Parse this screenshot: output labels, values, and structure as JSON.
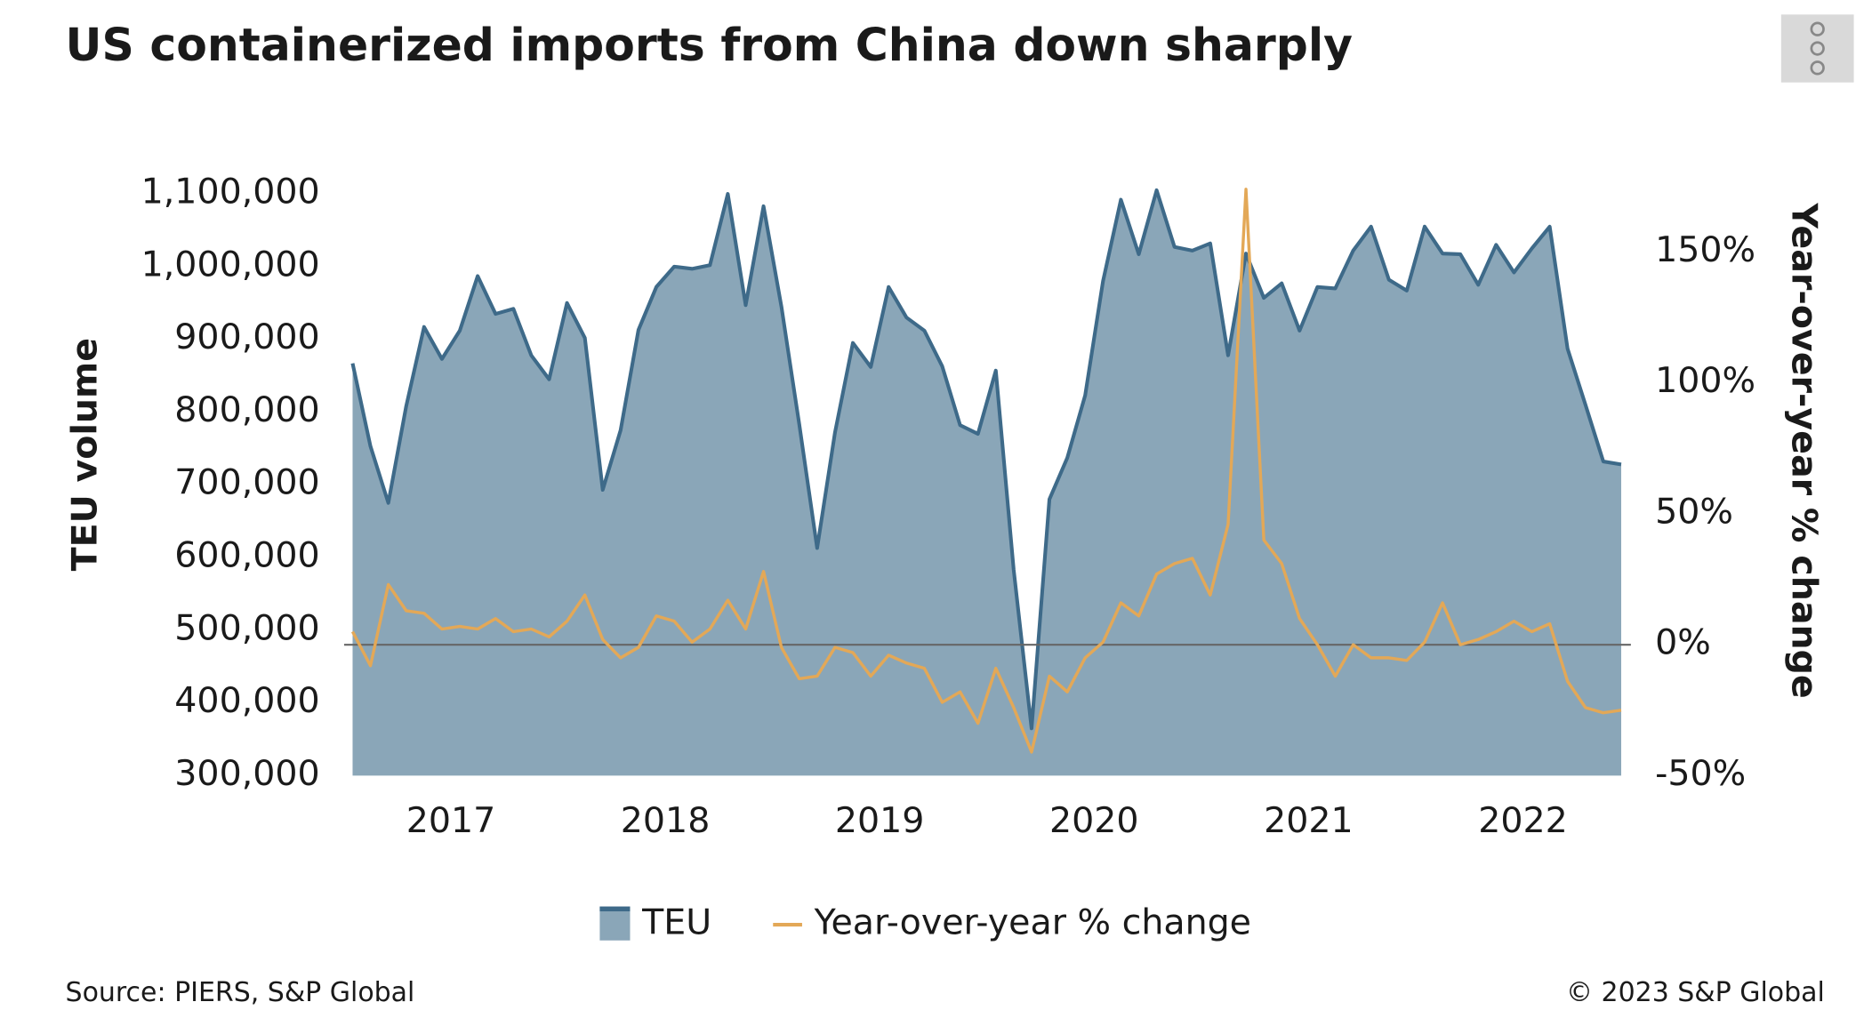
{
  "chart_data": {
    "type": "area-line",
    "title": "US containerized imports from China down sharply",
    "ylabel": "TEU volume",
    "y2label": "Year-over-year % change",
    "source": "Source: PIERS, S&P Global",
    "copyright": "© 2023 S&P Global",
    "categories": [
      null,
      null,
      null,
      null,
      null,
      "2017",
      null,
      null,
      null,
      null,
      null,
      null,
      null,
      null,
      null,
      null,
      null,
      "2018",
      null,
      null,
      null,
      null,
      null,
      null,
      null,
      null,
      null,
      null,
      null,
      "2019",
      null,
      null,
      null,
      null,
      null,
      null,
      null,
      null,
      null,
      null,
      null,
      "2020",
      null,
      null,
      null,
      null,
      null,
      null,
      null,
      null,
      null,
      null,
      null,
      "2021",
      null,
      null,
      null,
      null,
      null,
      null,
      null,
      null,
      null,
      null,
      null,
      "2022",
      null,
      null,
      null,
      null,
      null,
      null
    ],
    "series": [
      {
        "name": "TEU",
        "color": "#8aa6b8",
        "line_color": "#3e6a89",
        "values": [
          867000,
          753000,
          675000,
          808000,
          917000,
          873000,
          912000,
          987000,
          935000,
          942000,
          878000,
          845000,
          950000,
          902000,
          693000,
          775000,
          913000,
          972000,
          1000000,
          997000,
          1002000,
          1100000,
          947000,
          1083000,
          945000,
          783000,
          613000,
          772000,
          895000,
          862000,
          972000,
          930000,
          912000,
          863000,
          782000,
          770000,
          857000,
          583000,
          365000,
          680000,
          737000,
          823000,
          980000,
          1092000,
          1017000,
          1105000,
          1027000,
          1022000,
          1032000,
          878000,
          1018000,
          957000,
          977000,
          912000,
          972000,
          970000,
          1022000,
          1055000,
          982000,
          967000,
          1055000,
          1018000,
          1017000,
          975000,
          1030000,
          992000,
          1025000,
          1055000,
          887000,
          810000,
          732000,
          728000
        ]
      },
      {
        "name": "Year-over-year % change",
        "color": "#e3a857",
        "axis": "y2",
        "values": [
          5,
          -8,
          23,
          13,
          12,
          6,
          7,
          6,
          10,
          5,
          6,
          3,
          9,
          19,
          2,
          -5,
          -1,
          11,
          9,
          1,
          6,
          17,
          6,
          28,
          -1,
          -13,
          -12,
          -1,
          -3,
          -12,
          -4,
          -7,
          -9,
          -22,
          -18,
          -30,
          -9,
          -24,
          -41,
          -12,
          -18,
          -5,
          1,
          16,
          11,
          27,
          31,
          33,
          19,
          46,
          174,
          40,
          31,
          10,
          0,
          -12,
          0,
          -5,
          -5,
          -6,
          1,
          16,
          0,
          2,
          5,
          9,
          5,
          8,
          -14,
          -24,
          -26,
          -25
        ]
      }
    ],
    "ylim": [
      300000,
      1116667
    ],
    "yticks": [
      {
        "value": 300000,
        "label": "300,000"
      },
      {
        "value": 400000,
        "label": "400,000"
      },
      {
        "value": 500000,
        "label": "500,000"
      },
      {
        "value": 600000,
        "label": "600,000"
      },
      {
        "value": 700000,
        "label": "700,000"
      },
      {
        "value": 800000,
        "label": "800,000"
      },
      {
        "value": 900000,
        "label": "900,000"
      },
      {
        "value": 1000000,
        "label": "1,000,000"
      },
      {
        "value": 1100000,
        "label": "1,100,000"
      }
    ],
    "y2lim": [
      -50,
      176.85
    ],
    "y2ticks": [
      {
        "value": -50,
        "label": "-50%"
      },
      {
        "value": 0,
        "label": "0%"
      },
      {
        "value": 50,
        "label": "50%"
      },
      {
        "value": 100,
        "label": "100%"
      },
      {
        "value": 150,
        "label": "150%"
      }
    ],
    "legend": "bottom"
  }
}
